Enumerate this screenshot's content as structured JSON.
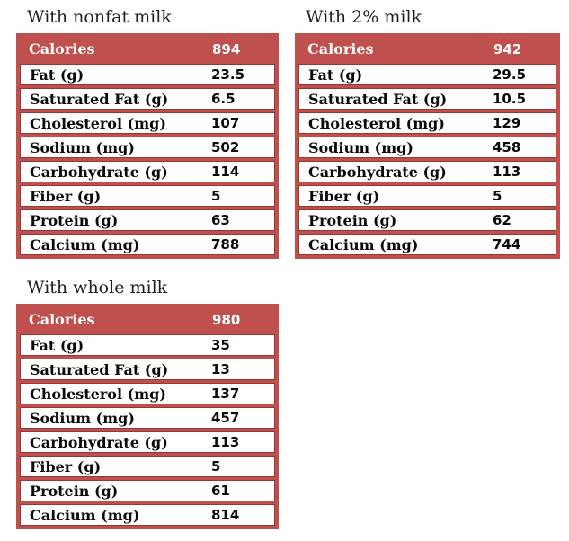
{
  "page": {
    "background": "#ffffff"
  },
  "colors": {
    "table_frame_red": "#C0504D",
    "cell_border_red": "#953735",
    "header_text": "#ffffff",
    "body_text": "#0a0a0a"
  },
  "tables": [
    {
      "title": "With nonfat milk",
      "header": {
        "label": "Calories",
        "value": "894"
      },
      "rows": [
        {
          "label": "Fat (g)",
          "value": "23.5"
        },
        {
          "label": "Saturated Fat (g)",
          "value": "6.5"
        },
        {
          "label": "Cholesterol (mg)",
          "value": "107"
        },
        {
          "label": "Sodium (mg)",
          "value": "502"
        },
        {
          "label": "Carbohydrate (g)",
          "value": "114"
        },
        {
          "label": "Fiber (g)",
          "value": "5"
        },
        {
          "label": "Protein (g)",
          "value": "63"
        },
        {
          "label": "Calcium (mg)",
          "value": "788"
        }
      ]
    },
    {
      "title": "With 2% milk",
      "header": {
        "label": "Calories",
        "value": "942"
      },
      "rows": [
        {
          "label": "Fat (g)",
          "value": "29.5"
        },
        {
          "label": "Saturated Fat (g)",
          "value": "10.5"
        },
        {
          "label": "Cholesterol (mg)",
          "value": "129"
        },
        {
          "label": "Sodium (mg)",
          "value": "458"
        },
        {
          "label": "Carbohydrate (g)",
          "value": "113"
        },
        {
          "label": "Fiber (g)",
          "value": "5"
        },
        {
          "label": "Protein (g)",
          "value": "62"
        },
        {
          "label": "Calcium (mg)",
          "value": "744"
        }
      ]
    },
    {
      "title": "With whole milk",
      "header": {
        "label": "Calories",
        "value": "980"
      },
      "rows": [
        {
          "label": "Fat (g)",
          "value": "35"
        },
        {
          "label": "Saturated Fat (g)",
          "value": "13"
        },
        {
          "label": "Cholesterol (mg)",
          "value": "137"
        },
        {
          "label": "Sodium (mg)",
          "value": "457"
        },
        {
          "label": "Carbohydrate (g)",
          "value": "113"
        },
        {
          "label": "Fiber (g)",
          "value": "5"
        },
        {
          "label": "Protein (g)",
          "value": "61"
        },
        {
          "label": "Calcium (mg)",
          "value": "814"
        }
      ]
    }
  ]
}
